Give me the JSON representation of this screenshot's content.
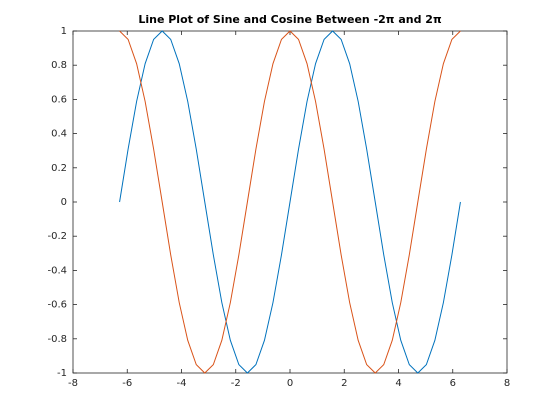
{
  "chart_data": {
    "type": "line",
    "title": "Line Plot of Sine and Cosine Between -2π and 2π",
    "x": [
      -6.283,
      -5.969,
      -5.655,
      -5.341,
      -5.027,
      -4.712,
      -4.398,
      -4.084,
      -3.77,
      -3.456,
      -3.142,
      -2.827,
      -2.513,
      -2.199,
      -1.885,
      -1.571,
      -1.257,
      -0.942,
      -0.628,
      -0.314,
      0,
      0.314,
      0.628,
      0.942,
      1.257,
      1.571,
      1.885,
      2.199,
      2.513,
      2.827,
      3.142,
      3.456,
      3.77,
      4.084,
      4.398,
      4.712,
      5.027,
      5.341,
      5.655,
      5.969,
      6.283
    ],
    "series": [
      {
        "color": "#0072bd",
        "values": [
          0,
          0.309,
          0.588,
          0.809,
          0.951,
          1,
          0.951,
          0.809,
          0.588,
          0.309,
          0,
          -0.309,
          -0.588,
          -0.809,
          -0.951,
          -1,
          -0.951,
          -0.809,
          -0.588,
          -0.309,
          0,
          0.309,
          0.588,
          0.809,
          0.951,
          1,
          0.951,
          0.809,
          0.588,
          0.309,
          0,
          -0.309,
          -0.588,
          -0.809,
          -0.951,
          -1,
          -0.951,
          -0.809,
          -0.588,
          -0.309,
          0
        ]
      },
      {
        "color": "#d95319",
        "values": [
          1,
          0.951,
          0.809,
          0.588,
          0.309,
          0,
          -0.309,
          -0.588,
          -0.809,
          -0.951,
          -1,
          -0.951,
          -0.809,
          -0.588,
          -0.309,
          0,
          0.309,
          0.588,
          0.809,
          0.951,
          1,
          0.951,
          0.809,
          0.588,
          0.309,
          0,
          -0.309,
          -0.588,
          -0.809,
          -0.951,
          -1,
          -0.951,
          -0.809,
          -0.588,
          -0.309,
          0,
          0.309,
          0.588,
          0.809,
          0.951,
          1
        ]
      }
    ],
    "xlim": [
      -8,
      8
    ],
    "xticks": [
      -8,
      -6,
      -4,
      -2,
      0,
      2,
      4,
      6,
      8
    ],
    "ylim": [
      -1,
      1
    ],
    "yticks": [
      -1,
      -0.8,
      -0.6,
      -0.4,
      -0.2,
      0,
      0.2,
      0.4,
      0.6,
      0.8,
      1
    ],
    "grid": false
  }
}
